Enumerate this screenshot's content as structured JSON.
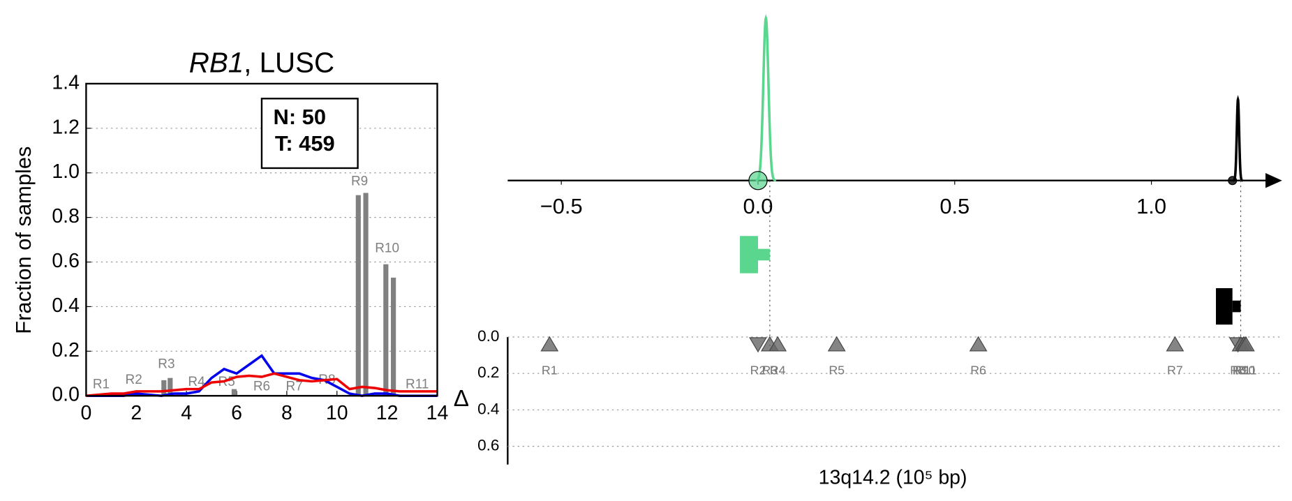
{
  "chart_data": [
    {
      "type": "line",
      "title": [
        "RB1",
        ", LUSC"
      ],
      "ylabel": "Fraction of samples",
      "xlim": [
        0,
        14
      ],
      "ylim": [
        0,
        1.4
      ],
      "xticks": [
        0,
        2,
        4,
        6,
        8,
        10,
        12,
        14
      ],
      "yticks": [
        {
          "value": 0,
          "label": "0.0"
        },
        {
          "value": 0.2,
          "label": "0.2"
        },
        {
          "value": 0.4,
          "label": "0.4"
        },
        {
          "value": 0.6,
          "label": "0.6"
        },
        {
          "value": 0.8,
          "label": "0.8"
        },
        {
          "value": 1.0,
          "label": "1.0"
        },
        {
          "value": 1.2,
          "label": "1.2"
        },
        {
          "value": 1.4,
          "label": "1.4"
        }
      ],
      "grid": true,
      "annotation": [
        "N: 50",
        "T: 459"
      ],
      "x": [
        0,
        0.5,
        1,
        1.5,
        2,
        2.5,
        3,
        3.5,
        4,
        4.5,
        5,
        5.5,
        6,
        6.5,
        7,
        7.5,
        8,
        8.5,
        9,
        9.5,
        10,
        10.5,
        11,
        11.5,
        12,
        12.5,
        13,
        13.5,
        14
      ],
      "series": [
        {
          "color": "#0000ee",
          "values": [
            0,
            0,
            0,
            0,
            0.01,
            0.005,
            0,
            0.01,
            0.01,
            0.02,
            0.08,
            0.12,
            0.1,
            0.14,
            0.18,
            0.1,
            0.1,
            0.1,
            0.08,
            0.07,
            0.04,
            0.01,
            0,
            0.01,
            0.01,
            0,
            0,
            0,
            0
          ]
        },
        {
          "color": "#ee0000",
          "values": [
            0,
            0.005,
            0.01,
            0.01,
            0.02,
            0.02,
            0.02,
            0.025,
            0.03,
            0.03,
            0.06,
            0.065,
            0.085,
            0.09,
            0.085,
            0.1,
            0.085,
            0.07,
            0.065,
            0.07,
            0.075,
            0.03,
            0.04,
            0.035,
            0.025,
            0.02,
            0.02,
            0.02,
            0.02
          ]
        }
      ],
      "bars": {
        "color": "#808080",
        "x": [
          3.1,
          3.35,
          5.9,
          10.85,
          11.15,
          11.95,
          12.25
        ],
        "values": [
          0.07,
          0.08,
          0.03,
          0.9,
          0.91,
          0.59,
          0.53
        ]
      },
      "regions": {
        "labels": [
          "R1",
          "R2",
          "R3",
          "R4",
          "R5",
          "R6",
          "R7",
          "R8",
          "R9",
          "R10",
          "R11"
        ],
        "x": [
          0.6,
          1.9,
          3.2,
          4.4,
          5.6,
          7.0,
          8.3,
          9.6,
          10.9,
          12.0,
          13.2
        ],
        "y": [
          0.05,
          0.07,
          0.14,
          0.06,
          0.06,
          0.04,
          0.04,
          0.07,
          0.96,
          0.66,
          0.05
        ]
      }
    },
    {
      "type": "scatter",
      "xlabel": "13q14.2 (10⁵ bp)",
      "xlim": [
        -0.63,
        1.33
      ],
      "xticks": [
        {
          "value": -0.5,
          "label": "−0.5"
        },
        {
          "value": 0,
          "label": "0.0"
        },
        {
          "value": 0.5,
          "label": "0.5"
        },
        {
          "value": 1.0,
          "label": "1.0"
        }
      ],
      "peaks": [
        {
          "color": "#5ad68f",
          "center": 0.02,
          "width": 0.0065,
          "height": 1,
          "point": 0.0,
          "interval": [
            -0.046,
            0.0,
            0.03
          ]
        },
        {
          "color": "#000000",
          "center": 1.22,
          "width": 0.003,
          "height": 0.5,
          "point": 1.206,
          "interval": [
            1.164,
            1.206,
            1.227
          ]
        }
      ],
      "ylabel": "Δ",
      "ylim": [
        0,
        0.7
      ],
      "yticks": [
        {
          "value": 0,
          "label": "0.0"
        },
        {
          "value": 0.2,
          "label": "0.2"
        },
        {
          "value": 0.4,
          "label": "0.4"
        },
        {
          "value": 0.6,
          "label": "0.6"
        }
      ],
      "grid": true,
      "markers": {
        "color": "#666666",
        "labels": [
          "R1",
          "R2",
          "R3",
          "R4",
          "R5",
          "R6",
          "R7",
          "R8",
          "R9",
          "R10",
          "R11"
        ],
        "x": [
          -0.53,
          0.0,
          0.03,
          0.05,
          0.2,
          0.56,
          1.06,
          1.22,
          1.227,
          1.235,
          1.24
        ],
        "values": [
          0.04,
          0.04,
          0.04,
          0.04,
          0.04,
          0.04,
          0.04,
          0.04,
          0.04,
          0.04,
          0.04
        ],
        "direction": [
          "up",
          "down",
          "up",
          "up",
          "up",
          "up",
          "up",
          "down",
          "up",
          "up",
          "up"
        ]
      }
    }
  ]
}
